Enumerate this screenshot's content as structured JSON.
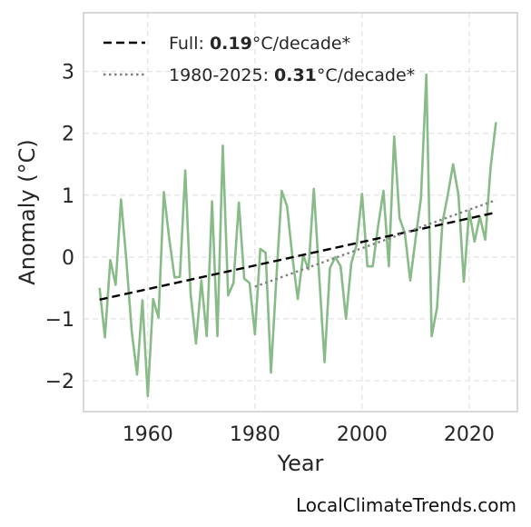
{
  "chart_data": {
    "type": "line",
    "xlabel": "Year",
    "ylabel": "Anomaly (°C)",
    "xlim": [
      1948,
      2029
    ],
    "ylim": [
      -2.5,
      3.95
    ],
    "xticks": [
      1960,
      1980,
      2000,
      2020
    ],
    "yticks": [
      -2,
      -1,
      0,
      1,
      2,
      3
    ],
    "ytick_labels": [
      "−2",
      "−1",
      "0",
      "1",
      "2",
      "3"
    ],
    "grid": true,
    "legend_position": "top-left",
    "series": [
      {
        "color": "#88bb88",
        "x": [
          1951,
          1952,
          1953,
          1954,
          1955,
          1956,
          1957,
          1958,
          1959,
          1960,
          1961,
          1962,
          1963,
          1964,
          1965,
          1966,
          1967,
          1968,
          1969,
          1970,
          1971,
          1972,
          1973,
          1974,
          1975,
          1976,
          1977,
          1978,
          1979,
          1980,
          1981,
          1982,
          1983,
          1984,
          1985,
          1986,
          1987,
          1988,
          1989,
          1990,
          1991,
          1992,
          1993,
          1994,
          1995,
          1996,
          1997,
          1998,
          1999,
          2000,
          2001,
          2002,
          2003,
          2004,
          2005,
          2006,
          2007,
          2008,
          2009,
          2010,
          2011,
          2012,
          2013,
          2014,
          2015,
          2016,
          2017,
          2018,
          2019,
          2020,
          2021,
          2022,
          2023,
          2024,
          2025
        ],
        "y": [
          -0.5,
          -1.3,
          -0.05,
          -0.45,
          0.93,
          -0.05,
          -1.2,
          -1.9,
          -0.7,
          -2.25,
          -0.68,
          -0.98,
          1.05,
          0.3,
          -0.33,
          -0.32,
          1.4,
          -0.6,
          -1.4,
          -0.38,
          -1.28,
          0.9,
          -1.28,
          1.8,
          -0.62,
          -0.42,
          0.88,
          -0.35,
          -0.42,
          -1.25,
          0.13,
          0.07,
          -1.87,
          -0.35,
          1.07,
          0.82,
          0.0,
          -0.68,
          0.03,
          -0.2,
          1.1,
          -0.3,
          -1.7,
          -0.18,
          0.0,
          -0.15,
          -1.0,
          -0.1,
          0.2,
          1.02,
          -0.15,
          -0.15,
          0.5,
          1.07,
          -0.15,
          1.95,
          0.63,
          0.38,
          -0.38,
          0.3,
          0.95,
          2.95,
          -1.28,
          -0.82,
          0.55,
          1.0,
          1.5,
          1.0,
          -0.4,
          0.75,
          0.25,
          0.65,
          0.28,
          1.45,
          2.18
        ]
      },
      {
        "name_prefix": "Full: ",
        "name_value": "0.19",
        "name_suffix": "°C/decade*",
        "style": "dashed",
        "color": "#000000",
        "x": [
          1951,
          2025
        ],
        "y": [
          -0.69,
          0.72
        ]
      },
      {
        "name_prefix": "1980-2025: ",
        "name_value": "0.31",
        "name_suffix": "°C/decade*",
        "style": "dotted",
        "color": "#808080",
        "x": [
          1980,
          2025
        ],
        "y": [
          -0.48,
          0.92
        ]
      }
    ]
  },
  "credit": "LocalClimateTrends.com"
}
